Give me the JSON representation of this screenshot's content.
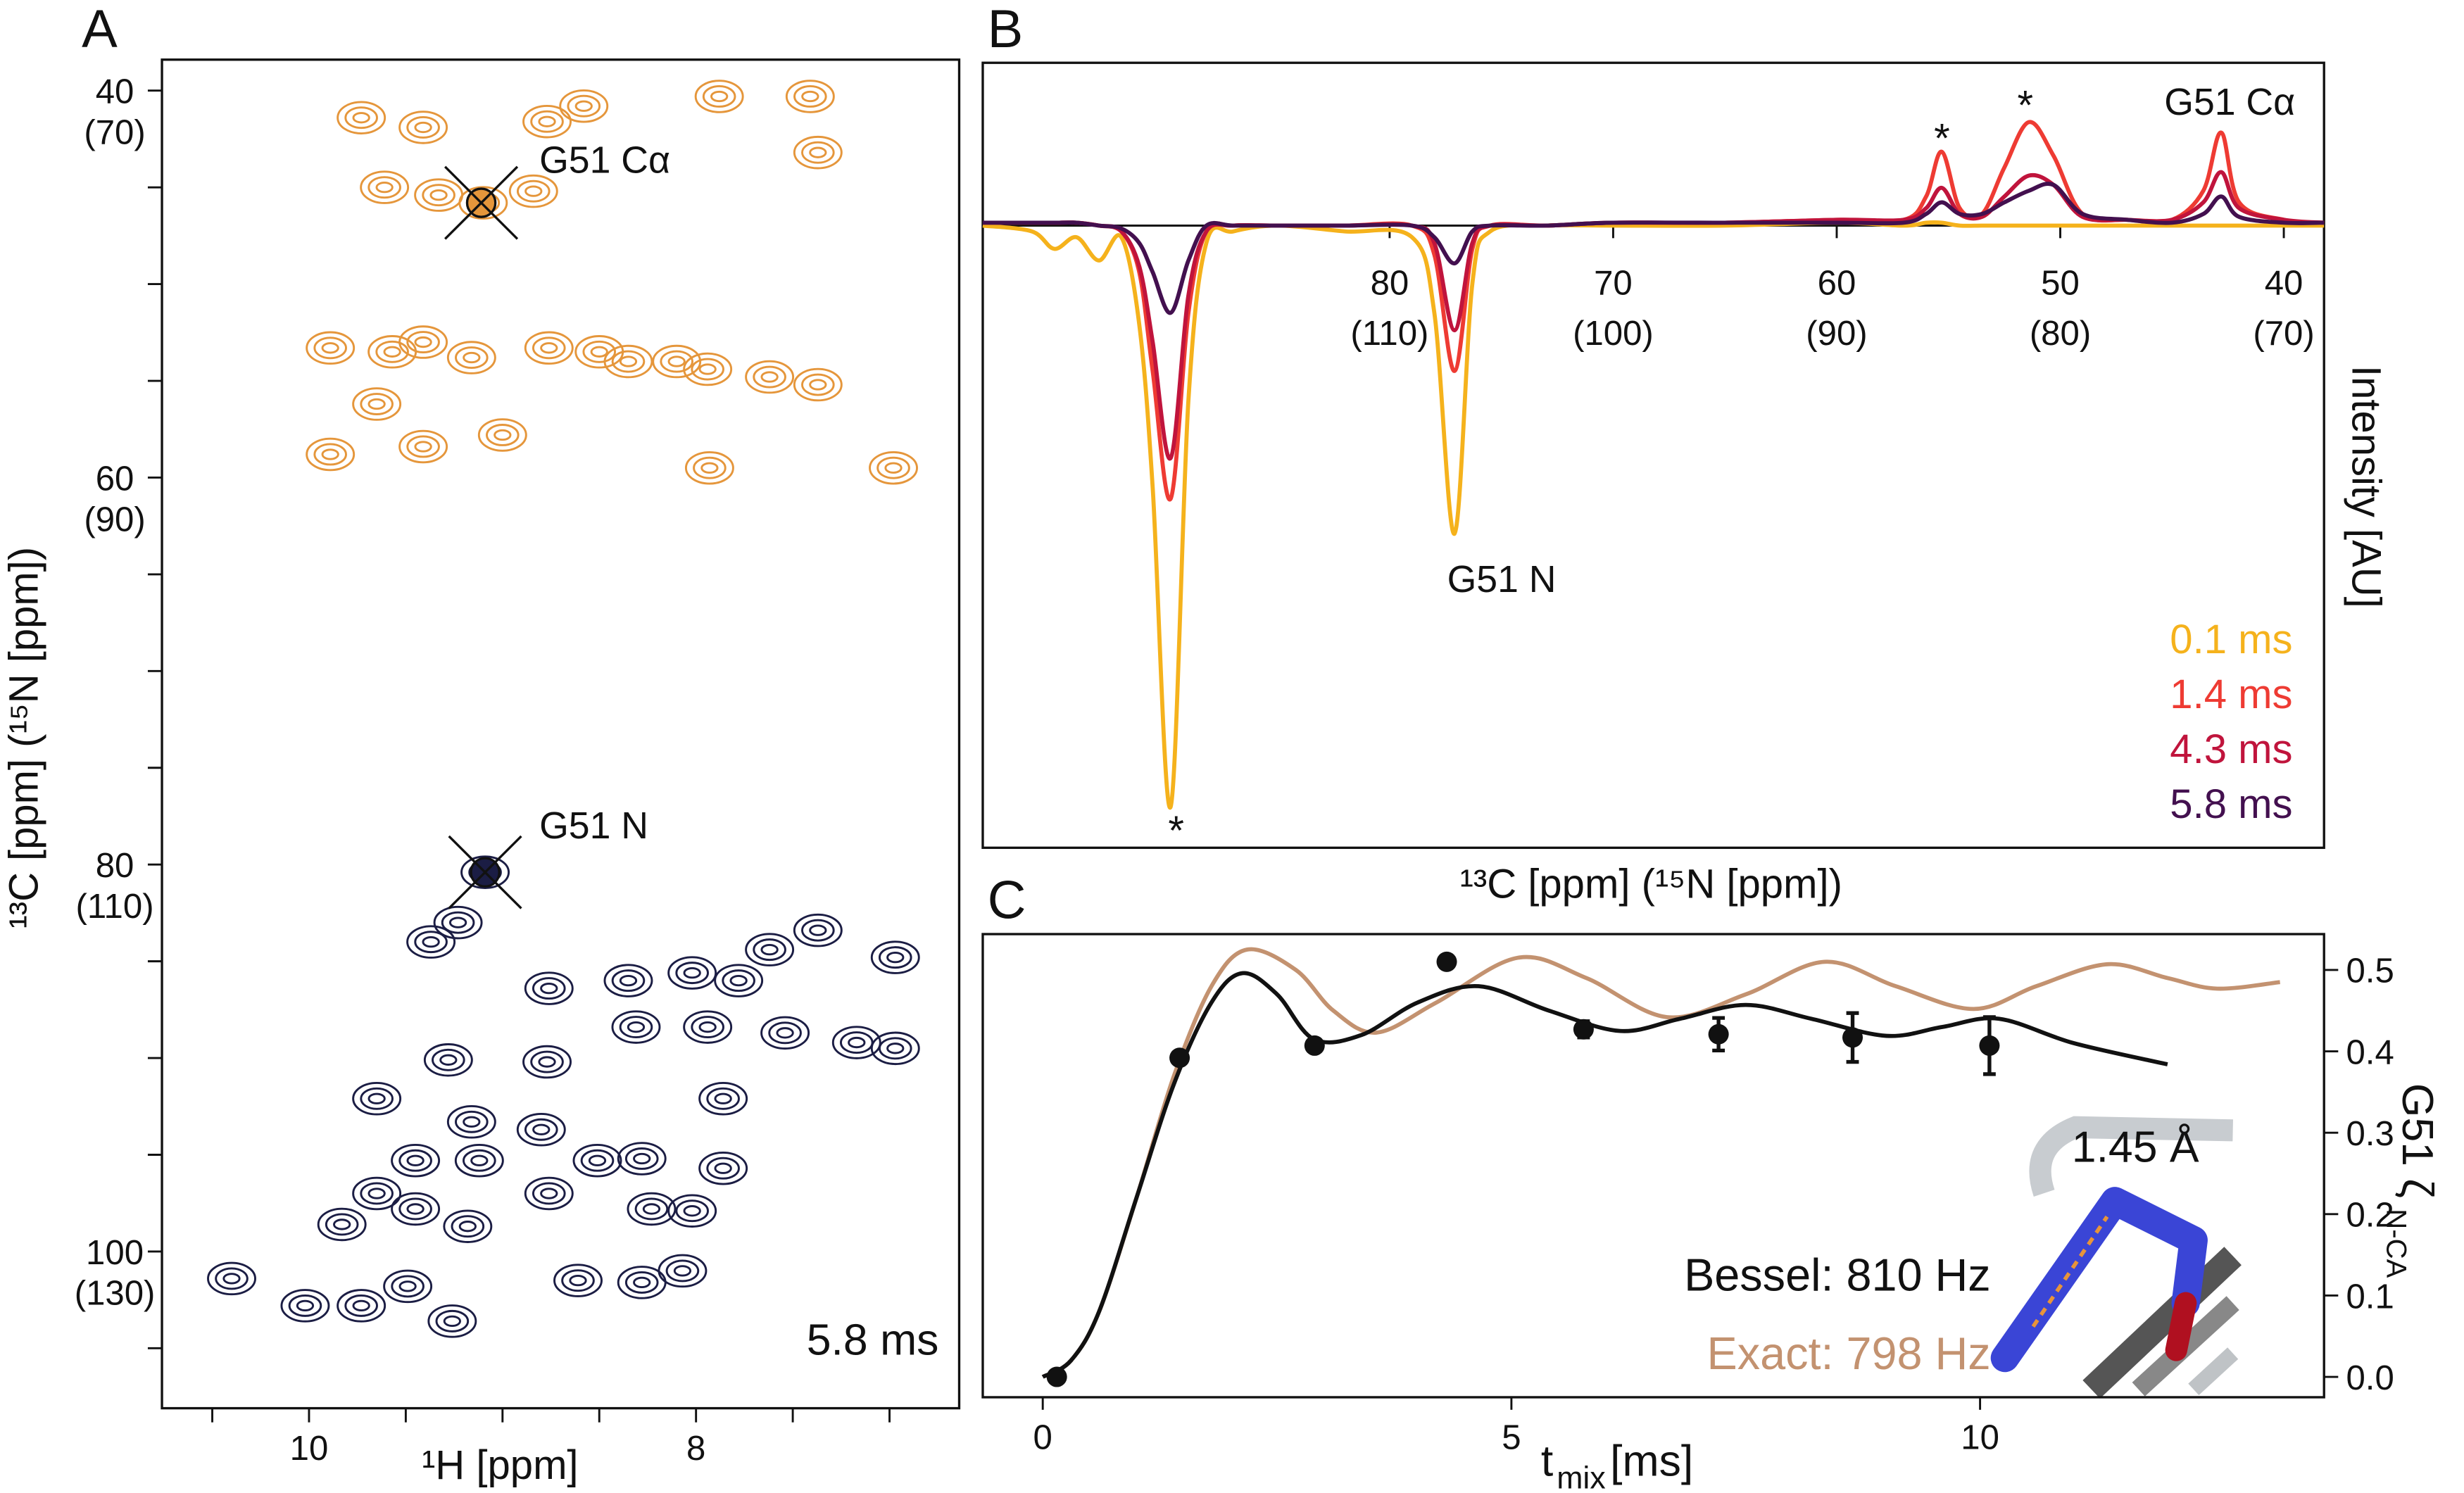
{
  "chart_data": [
    {
      "type": "contour",
      "panel_label": "A",
      "xlabel": "¹H [ppm]",
      "ylabel": "¹³C [ppm] (¹⁵N [ppm])",
      "xlim": [
        10.76,
        6.64
      ],
      "ylim": [
        108.1,
        38.4
      ],
      "xticks": [
        10,
        8
      ],
      "xminorticks": [
        10.5,
        9.5,
        9,
        8.5,
        7.5,
        7
      ],
      "yticks": [
        {
          "value": 40,
          "label": [
            "40",
            "(70)"
          ]
        },
        {
          "value": 60,
          "label": [
            "60",
            "(90)"
          ]
        },
        {
          "value": 80,
          "label": [
            "80",
            "(110)"
          ]
        },
        {
          "value": 100,
          "label": [
            "100",
            "(130)"
          ]
        }
      ],
      "yminorticks": [
        45,
        50,
        55,
        65,
        70,
        75,
        85,
        90,
        95,
        105
      ],
      "series": [
        {
          "color": "#e5963b",
          "x": [
            9.73,
            9.41,
            8.77,
            8.58,
            7.88,
            7.41,
            7.37,
            9.61,
            9.33,
            9.1,
            8.84,
            9.89,
            9.57,
            9.16,
            8.76,
            8.35,
            7.94,
            7.62,
            7.37,
            9.65,
            9.41,
            9.0,
            9.89,
            6.98,
            7.93,
            9.41,
            8.5,
            8.1
          ],
          "values": [
            41.4,
            41.9,
            41.6,
            40.8,
            40.3,
            40.3,
            43.2,
            45.0,
            45.4,
            45.8,
            45.2,
            53.3,
            53.5,
            53.8,
            53.3,
            54.0,
            54.4,
            54.8,
            55.2,
            56.2,
            58.4,
            57.8,
            58.8,
            59.5,
            59.5,
            53.0,
            53.5,
            54.0
          ]
        },
        {
          "color": "#1b1d44",
          "x": [
            10.4,
            10.02,
            9.73,
            9.26,
            9.37,
            9.23,
            9.28,
            8.77,
            8.8,
            9.16,
            9.12,
            8.51,
            8.28,
            8.23,
            8.02,
            8.07,
            8.28,
            8.61,
            8.76,
            9.45,
            9.65,
            9.83,
            9.65,
            9.45,
            9.18,
            9.49,
            8.76,
            8.35,
            8.02,
            7.78,
            7.62,
            7.37,
            6.97,
            8.31,
            7.94,
            7.54,
            6.97,
            7.17,
            7.86,
            7.86,
            9.09
          ],
          "values": [
            101.4,
            102.8,
            102.8,
            103.6,
            84.0,
            83.0,
            90.1,
            90.2,
            93.7,
            93.3,
            95.3,
            95.3,
            95.2,
            97.8,
            97.9,
            101.0,
            101.6,
            101.5,
            97.0,
            95.3,
            92.1,
            98.6,
            97.0,
            97.8,
            98.7,
            101.8,
            86.4,
            86.0,
            85.6,
            86.0,
            84.4,
            83.4,
            84.8,
            88.4,
            88.4,
            88.7,
            89.5,
            89.2,
            92.1,
            95.7,
            80.4
          ]
        }
      ],
      "markers": {
        "x": [
          9.11,
          9.09
        ],
        "values": [
          45.8,
          80.4
        ]
      },
      "annotations": [
        "G51 Cα",
        "G51 N",
        "5.8 ms"
      ]
    },
    {
      "type": "line",
      "panel_label": "B",
      "xlabel": "¹³C [ppm] (¹⁵N [ppm])",
      "ylabel": "Intensity [AU]",
      "xlim": [
        98.2,
        38.2
      ],
      "ylim": [
        -1.07,
        0.28
      ],
      "xticks": [
        {
          "value": 80,
          "label": [
            "80",
            "(110)"
          ]
        },
        {
          "value": 70,
          "label": [
            "70",
            "(100)"
          ]
        },
        {
          "value": 60,
          "label": [
            "60",
            "(90)"
          ]
        },
        {
          "value": 50,
          "label": [
            "50",
            "(80)"
          ]
        },
        {
          "value": 40,
          "label": [
            "40",
            "(70)"
          ]
        }
      ],
      "x": [
        98.2,
        96,
        95,
        94,
        93,
        92,
        91.2,
        90.6,
        89.8,
        89.0,
        88.2,
        87,
        85,
        82,
        79,
        78,
        77.1,
        76.3,
        75.5,
        73,
        70,
        65,
        60,
        57,
        56,
        55.3,
        54.5,
        53.5,
        52.5,
        51.4,
        50.3,
        49,
        47,
        45,
        43.6,
        42.8,
        42,
        40,
        38.2
      ],
      "series": [
        {
          "name": "0.1 ms",
          "color": "#f5b21c",
          "values": [
            0,
            -0.01,
            -0.04,
            -0.02,
            -0.06,
            -0.02,
            -0.17,
            -0.45,
            -1.0,
            -0.3,
            -0.03,
            -0.01,
            0,
            -0.01,
            -0.02,
            -0.15,
            -0.53,
            -0.1,
            -0.01,
            0,
            0,
            0,
            0.005,
            0,
            0.005,
            0.005,
            0,
            0,
            0,
            0,
            0,
            0,
            0,
            0,
            0,
            0,
            0,
            0,
            0
          ]
        },
        {
          "name": "1.4 ms",
          "color": "#ee3b33",
          "values": [
            0.005,
            0.005,
            0.005,
            0.005,
            0,
            -0.01,
            -0.08,
            -0.25,
            -0.47,
            -0.15,
            -0.01,
            0,
            0,
            0,
            0,
            -0.05,
            -0.25,
            -0.04,
            0,
            0,
            0.005,
            0.005,
            0.01,
            0.01,
            0.05,
            0.127,
            0.03,
            0.02,
            0.1,
            0.178,
            0.12,
            0.02,
            0.01,
            0.01,
            0.06,
            0.16,
            0.04,
            0.01,
            0.005
          ]
        },
        {
          "name": "4.3 ms",
          "color": "#c0143c",
          "values": [
            0.005,
            0.005,
            0.005,
            0.005,
            0,
            -0.01,
            -0.07,
            -0.2,
            -0.4,
            -0.12,
            -0.01,
            0,
            0,
            0,
            0,
            -0.03,
            -0.18,
            -0.03,
            0,
            0,
            0.005,
            0.005,
            0.01,
            0.01,
            0.03,
            0.065,
            0.02,
            0.015,
            0.05,
            0.086,
            0.07,
            0.015,
            0.01,
            0.01,
            0.04,
            0.092,
            0.03,
            0.01,
            0.005
          ]
        },
        {
          "name": "5.8 ms",
          "color": "#43104f",
          "values": [
            0.005,
            0.005,
            0.005,
            0.005,
            0,
            -0.005,
            -0.03,
            -0.08,
            -0.15,
            -0.06,
            0,
            0,
            0,
            0,
            0,
            -0.02,
            -0.065,
            -0.01,
            0,
            0,
            0.005,
            0.005,
            0.005,
            0.005,
            0.02,
            0.04,
            0.02,
            0.02,
            0.04,
            0.06,
            0.07,
            0.02,
            0.01,
            0.005,
            0.02,
            0.05,
            0.015,
            0.005,
            0.005
          ]
        }
      ],
      "annotations": [
        "G51 Cα",
        "G51 N",
        "*",
        "*",
        "*"
      ]
    },
    {
      "type": "line",
      "panel_label": "C",
      "xlabel": "t",
      "xlabel_sub": "mix",
      "xlabel_unit": "[ms]",
      "ylabel": "G51 ζ",
      "ylabel_sub": "N-CA",
      "xlim": [
        -0.64,
        13.67
      ],
      "ylim": [
        -0.025,
        0.544
      ],
      "xticks": [
        0,
        5,
        10
      ],
      "yticks": [
        {
          "value": 0,
          "label": "0.0"
        },
        0.1,
        0.2,
        0.3,
        0.4,
        0.5
      ],
      "series": [
        {
          "name": "Bessel: 810 Hz",
          "color": "#111111",
          "x": [
            0,
            0.3,
            0.6,
            1.0,
            1.4,
            1.8,
            2.13,
            2.5,
            2.89,
            3.4,
            4.0,
            4.65,
            5.4,
            6.16,
            6.8,
            7.5,
            8.2,
            9.0,
            9.6,
            10.2,
            11,
            12
          ],
          "values": [
            0,
            0.02,
            0.08,
            0.22,
            0.36,
            0.46,
            0.496,
            0.47,
            0.415,
            0.42,
            0.46,
            0.48,
            0.45,
            0.425,
            0.44,
            0.457,
            0.44,
            0.419,
            0.43,
            0.44,
            0.41,
            0.384
          ]
        },
        {
          "name": "Exact: 798 Hz",
          "color": "#c39270",
          "x": [
            0,
            0.3,
            0.6,
            1.0,
            1.4,
            1.8,
            2.18,
            2.7,
            3.1,
            3.56,
            4.2,
            5.07,
            5.8,
            6.66,
            7.5,
            8.34,
            9.1,
            9.93,
            10.6,
            11.36,
            12.0,
            12.53,
            13.2
          ],
          "values": [
            0,
            0.02,
            0.08,
            0.22,
            0.37,
            0.48,
            0.525,
            0.5,
            0.45,
            0.423,
            0.46,
            0.515,
            0.49,
            0.442,
            0.47,
            0.51,
            0.48,
            0.452,
            0.48,
            0.507,
            0.49,
            0.477,
            0.485
          ]
        }
      ],
      "measured": {
        "color": "#111111",
        "x": [
          0.15,
          1.46,
          2.9,
          4.31,
          5.77,
          7.21,
          8.64,
          10.1
        ],
        "values": [
          0,
          0.392,
          0.407,
          0.51,
          0.427,
          0.421,
          0.417,
          0.407
        ],
        "errors": [
          0,
          0,
          0,
          0,
          0.01,
          0.02,
          0.03,
          0.035
        ]
      },
      "annotations": [
        "1.45 Å"
      ]
    }
  ]
}
